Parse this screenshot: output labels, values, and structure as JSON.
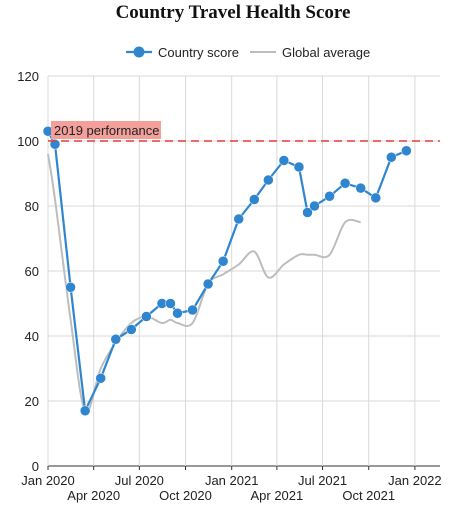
{
  "chart_data": {
    "type": "line",
    "title": "Country Travel Health Score",
    "xlabel": "",
    "ylabel": "",
    "ylim": [
      0,
      120
    ],
    "yticks": [
      0,
      20,
      40,
      60,
      80,
      100,
      120
    ],
    "x_tick_labels": [
      {
        "date": "2020-01-01",
        "label": "Jan 2020"
      },
      {
        "date": "2020-04-01",
        "label": "Apr 2020"
      },
      {
        "date": "2020-07-01",
        "label": "Jul 2020"
      },
      {
        "date": "2020-10-01",
        "label": "Oct 2020"
      },
      {
        "date": "2021-01-01",
        "label": "Jan 2021"
      },
      {
        "date": "2021-04-01",
        "label": "Apr 2021"
      },
      {
        "date": "2021-07-01",
        "label": "Jul 2021"
      },
      {
        "date": "2021-10-01",
        "label": "Oct 2021"
      },
      {
        "date": "2022-01-01",
        "label": "Jan 2022"
      }
    ],
    "x_range": [
      "2020-01-01",
      "2022-02-20"
    ],
    "grid": true,
    "legend_position": "top",
    "x": [
      "2020-01-01",
      "2020-01-15",
      "2020-02-15",
      "2020-03-15",
      "2020-04-15",
      "2020-05-15",
      "2020-06-15",
      "2020-07-15",
      "2020-08-15",
      "2020-09-01",
      "2020-09-15",
      "2020-10-15",
      "2020-11-15",
      "2020-12-15",
      "2021-01-15",
      "2021-02-15",
      "2021-03-15",
      "2021-04-15",
      "2021-05-15",
      "2021-06-01",
      "2021-06-15",
      "2021-07-15",
      "2021-08-15",
      "2021-09-15",
      "2021-10-15",
      "2021-11-15",
      "2021-12-15",
      "2022-01-15",
      "2022-02-15"
    ],
    "series": [
      {
        "name": "Country score",
        "color": "#2f86cf",
        "markers": true,
        "values": [
          103,
          99,
          55,
          17,
          27,
          39,
          42,
          46,
          50,
          50,
          47,
          48,
          56,
          63,
          76,
          82,
          88,
          94,
          92,
          78,
          80,
          83,
          87,
          85.5,
          82.5,
          95,
          97,
          null,
          null
        ]
      },
      {
        "name": "Global average",
        "color": "#bdbdbd",
        "markers": false,
        "values": [
          96,
          82,
          45,
          17,
          30,
          38,
          44,
          46,
          44,
          45,
          44,
          44,
          56,
          59,
          62,
          66,
          58,
          62,
          65,
          65,
          65,
          65,
          75,
          75,
          null,
          null,
          null,
          null,
          null
        ]
      }
    ],
    "reference_line": {
      "value": 100,
      "color": "#e53935",
      "style": "dashed",
      "label": "2019 performance",
      "label_bg": "#f4a09a"
    }
  }
}
